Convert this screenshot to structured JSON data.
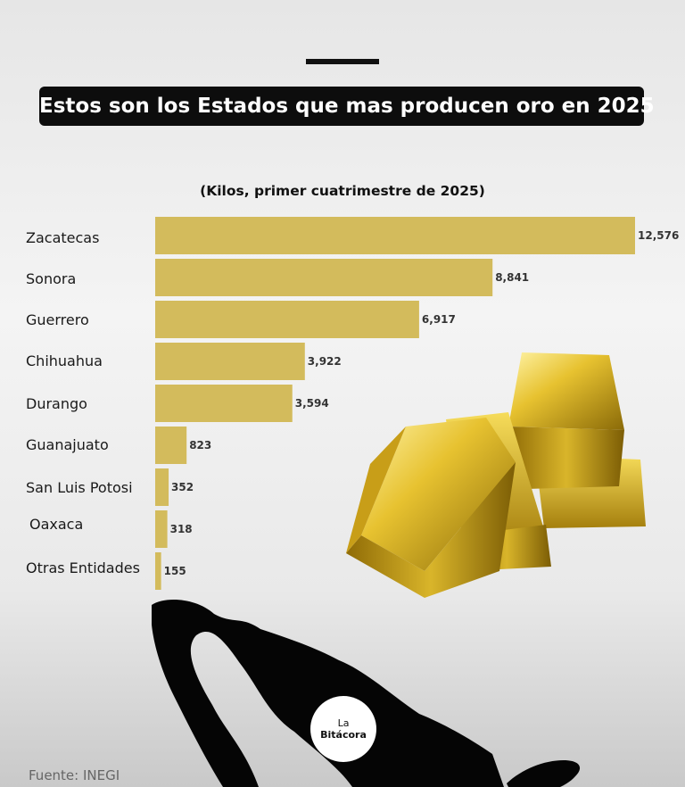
{
  "header": {
    "title": "Estos son los Estados que mas producen oro en 2025",
    "subtitle": "(Kilos, primer cuatrimestre de 2025)"
  },
  "chart_data": {
    "type": "bar",
    "orientation": "horizontal",
    "title": "Estos son los Estados que mas producen oro en 2025",
    "subtitle": "(Kilos, primer cuatrimestre de 2025)",
    "categories": [
      "Zacatecas",
      "Sonora",
      "Guerrero",
      "Chihuahua",
      "Durango",
      "Guanajuato",
      "San Luis Potosi",
      "Oaxaca",
      "Otras Entidades"
    ],
    "values": [
      12576,
      8841,
      6917,
      3922,
      3594,
      823,
      352,
      318,
      155
    ],
    "value_labels": [
      "12,576",
      "8,841",
      "6,917",
      "3,922",
      "3,594",
      "823",
      "352",
      "318",
      "155"
    ],
    "xlim": [
      0,
      12576
    ],
    "bar_color": "#d3bb5c",
    "grid": false,
    "legend": "none"
  },
  "footer": {
    "source": "Fuente: INEGI",
    "logo_small": "La",
    "logo_text": "Bitácora"
  },
  "colors": {
    "title_bg": "#0d0d0d",
    "bar": "#d3bb5c",
    "map": "#050505"
  },
  "icons": [
    "gold-bars-image",
    "mexico-map-silhouette",
    "bitacora-logo-icon"
  ]
}
